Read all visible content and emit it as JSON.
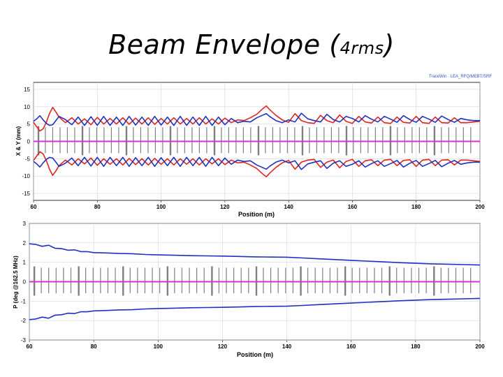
{
  "slide": {
    "title_main": "Beam Envelope (",
    "title_small": "4rms",
    "title_close": ")",
    "corner_tag": "TraceWin · LEA_RFQ/MEBT/SRF"
  },
  "colors": {
    "x_envelope": "#e0231c",
    "y_envelope": "#1f2fc0",
    "phase_envelope": "#1f2fc0",
    "centroid": "#d630d6",
    "elements": "#808080",
    "grid": "#cfd8e4",
    "axis": "#000000"
  },
  "chart_data": [
    {
      "type": "line",
      "xlabel": "Position (m)",
      "ylabel": "X & Y (mm)",
      "xlim": [
        60,
        200
      ],
      "ylim": [
        -17,
        17
      ],
      "xticks": [
        "60",
        "80",
        "100",
        "120",
        "140",
        "160",
        "180",
        "200"
      ],
      "yticks": [
        "15",
        "10",
        "5",
        "0",
        "-5",
        "-10",
        "-15"
      ],
      "grid": true,
      "series": [
        {
          "key": "x_upper",
          "color": "x_envelope",
          "x": [
            60,
            61,
            62,
            63,
            64,
            65,
            66,
            67,
            68,
            70,
            72,
            74,
            76,
            78,
            80,
            82,
            84,
            86,
            88,
            90,
            92,
            94,
            96,
            98,
            100,
            102,
            104,
            106,
            108,
            110,
            112,
            114,
            116,
            118,
            120,
            122,
            124,
            126,
            128,
            130,
            132,
            133,
            134,
            136,
            138,
            140,
            142,
            144,
            146,
            148,
            150,
            152,
            154,
            156,
            158,
            160,
            162,
            164,
            166,
            168,
            170,
            172,
            174,
            176,
            178,
            180,
            182,
            184,
            186,
            188,
            190,
            192,
            194,
            196,
            198,
            200
          ],
          "y": [
            5.5,
            4.2,
            3.0,
            3.6,
            5.5,
            8.0,
            9.8,
            8.5,
            7.0,
            5.4,
            6.8,
            5.0,
            6.5,
            4.8,
            6.9,
            5.0,
            6.6,
            5.0,
            6.8,
            4.9,
            6.7,
            5.0,
            6.8,
            4.9,
            6.6,
            5.0,
            6.8,
            5.0,
            6.6,
            5.0,
            6.8,
            5.0,
            6.5,
            5.0,
            6.7,
            5.4,
            6.2,
            6.0,
            6.8,
            7.8,
            9.5,
            10.2,
            9.2,
            7.5,
            6.2,
            5.5,
            8.0,
            6.0,
            5.4,
            5.2,
            7.5,
            6.0,
            5.4,
            7.6,
            5.8,
            5.2,
            7.2,
            5.6,
            5.3,
            7.0,
            5.4,
            5.2,
            7.0,
            5.5,
            5.3,
            7.2,
            5.4,
            5.2,
            7.0,
            5.4,
            5.3,
            6.8,
            5.4,
            5.4,
            5.6,
            5.8
          ]
        },
        {
          "key": "y_upper",
          "color": "y_envelope",
          "x": [
            60,
            61,
            62,
            63,
            64,
            65,
            66,
            67,
            68,
            70,
            72,
            74,
            76,
            78,
            80,
            82,
            84,
            86,
            88,
            90,
            92,
            94,
            96,
            98,
            100,
            102,
            104,
            106,
            108,
            110,
            112,
            114,
            116,
            118,
            120,
            122,
            124,
            126,
            128,
            130,
            132,
            133,
            134,
            136,
            138,
            140,
            142,
            144,
            146,
            148,
            150,
            152,
            154,
            156,
            158,
            160,
            162,
            164,
            166,
            168,
            170,
            172,
            174,
            176,
            178,
            180,
            182,
            184,
            186,
            188,
            190,
            192,
            194,
            196,
            198,
            200
          ],
          "y": [
            5.8,
            6.5,
            7.4,
            6.2,
            5.2,
            4.6,
            4.8,
            6.0,
            7.2,
            6.3,
            4.8,
            7.0,
            4.6,
            7.1,
            4.6,
            7.2,
            4.6,
            7.0,
            4.6,
            7.2,
            4.7,
            7.0,
            4.6,
            7.2,
            4.7,
            7.0,
            4.6,
            7.2,
            4.6,
            7.0,
            4.6,
            7.2,
            4.6,
            7.0,
            4.8,
            6.6,
            5.4,
            5.8,
            5.6,
            6.8,
            7.6,
            8.0,
            7.2,
            6.0,
            5.4,
            6.2,
            5.6,
            8.1,
            6.5,
            6.0,
            5.6,
            7.8,
            6.3,
            5.6,
            7.2,
            6.6,
            5.6,
            7.4,
            6.4,
            5.6,
            7.2,
            6.4,
            5.5,
            7.4,
            6.3,
            5.5,
            7.2,
            6.4,
            5.5,
            7.3,
            6.3,
            5.5,
            6.6,
            6.2,
            6.0,
            6.0
          ]
        },
        {
          "key": "centroid",
          "color": "centroid",
          "x": [
            60,
            200
          ],
          "y": [
            0,
            0
          ]
        }
      ]
    },
    {
      "type": "line",
      "xlabel": "Position (m)",
      "ylabel": "P (deg @162.5 MHz)",
      "xlim": [
        60,
        200
      ],
      "ylim": [
        -3,
        3
      ],
      "xticks": [
        "60",
        "80",
        "100",
        "120",
        "140",
        "160",
        "180",
        "200"
      ],
      "yticks": [
        "3",
        "2",
        "1",
        "0",
        "-1",
        "-2",
        "-3"
      ],
      "grid": true,
      "series": [
        {
          "key": "p_upper",
          "color": "phase_envelope",
          "x": [
            60,
            62,
            64,
            66,
            68,
            70,
            72,
            74,
            76,
            78,
            80,
            84,
            88,
            92,
            96,
            100,
            105,
            110,
            115,
            120,
            125,
            130,
            135,
            140,
            145,
            150,
            155,
            160,
            165,
            170,
            175,
            180,
            185,
            190,
            195,
            200
          ],
          "y": [
            1.95,
            1.92,
            1.82,
            1.88,
            1.72,
            1.7,
            1.62,
            1.64,
            1.55,
            1.55,
            1.5,
            1.48,
            1.45,
            1.44,
            1.4,
            1.38,
            1.36,
            1.34,
            1.33,
            1.32,
            1.3,
            1.28,
            1.27,
            1.26,
            1.22,
            1.18,
            1.14,
            1.1,
            1.06,
            1.02,
            0.98,
            0.95,
            0.92,
            0.9,
            0.88,
            0.86
          ]
        },
        {
          "key": "centroid",
          "color": "centroid",
          "x": [
            60,
            200
          ],
          "y": [
            0,
            0
          ]
        }
      ]
    }
  ]
}
